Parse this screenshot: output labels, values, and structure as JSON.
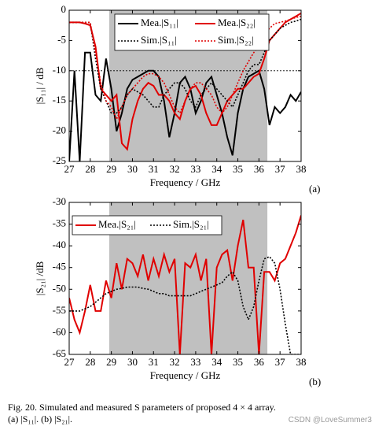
{
  "chart_data": [
    {
      "type": "line",
      "y_label": "|S₁₁| / dB",
      "x_label": "Frequency / GHz",
      "panel": "(a)",
      "xlim": [
        27,
        38
      ],
      "ylim": [
        -25,
        0
      ],
      "xticks": [
        27,
        28,
        29,
        30,
        31,
        32,
        33,
        34,
        35,
        36,
        37,
        38
      ],
      "yticks": [
        0,
        -5,
        -10,
        -15,
        -20,
        -25
      ],
      "shade": [
        28.9,
        36.4
      ],
      "reference_line": -10,
      "x": [
        27,
        27.25,
        27.5,
        27.75,
        28,
        28.25,
        28.5,
        28.75,
        29,
        29.25,
        29.5,
        29.75,
        30,
        30.25,
        30.5,
        30.75,
        31,
        31.25,
        31.5,
        31.75,
        32,
        32.25,
        32.5,
        32.75,
        33,
        33.25,
        33.5,
        33.75,
        34,
        34.25,
        34.5,
        34.75,
        35,
        35.25,
        35.5,
        35.75,
        36,
        36.25,
        36.5,
        36.75,
        37,
        37.25,
        37.5,
        37.75,
        38
      ],
      "series": [
        {
          "name": "Mea.|S₁₁|",
          "color": "#000000",
          "dash": "solid",
          "values": [
            -25,
            -10,
            -25,
            -7,
            -7,
            -14,
            -15,
            -8,
            -13,
            -20,
            -17,
            -13,
            -11.5,
            -11,
            -10.5,
            -10,
            -10,
            -11,
            -15,
            -21,
            -17,
            -12,
            -11,
            -13,
            -17,
            -15,
            -12,
            -11,
            -14,
            -17,
            -21,
            -24,
            -17,
            -13,
            -11,
            -10.5,
            -10,
            -13,
            -19,
            -16,
            -17,
            -16,
            -14,
            -15,
            -13.5
          ]
        },
        {
          "name": "Mea.|S₂₂|",
          "color": "#e00000",
          "dash": "solid",
          "values": [
            -2,
            -2,
            -2,
            -2.2,
            -2.5,
            -6,
            -13,
            -14,
            -15,
            -14,
            -22,
            -23,
            -18,
            -15,
            -13,
            -12,
            -12.5,
            -14,
            -14,
            -15,
            -17,
            -18,
            -15,
            -13,
            -12.5,
            -14,
            -17,
            -19,
            -19,
            -17,
            -15,
            -14,
            -13,
            -13,
            -12,
            -11,
            -10.5,
            -8,
            -5,
            -4,
            -3,
            -2,
            -1.5,
            -1,
            -0.5
          ]
        },
        {
          "name": "Sim.|S₁₁|",
          "color": "#000000",
          "dash": "dotted",
          "values": [
            -2,
            -2,
            -2,
            -2,
            -2,
            -8,
            -13,
            -15,
            -17,
            -17,
            -16,
            -14,
            -13,
            -13.5,
            -14,
            -15,
            -16,
            -16,
            -14,
            -13,
            -12,
            -12,
            -13,
            -15,
            -16,
            -14,
            -13,
            -12,
            -13,
            -14,
            -15,
            -16,
            -14,
            -12,
            -10,
            -9,
            -9,
            -7,
            -5,
            -4,
            -3,
            -2.5,
            -2,
            -1.8,
            -1.5
          ]
        },
        {
          "name": "Sim.|S₂₂|",
          "color": "#e00000",
          "dash": "dotted",
          "values": [
            -2,
            -2,
            -2,
            -2,
            -2,
            -7,
            -12,
            -15,
            -16,
            -18,
            -16,
            -14,
            -13,
            -12,
            -11,
            -10.5,
            -10.5,
            -11,
            -12,
            -14,
            -16,
            -17,
            -15,
            -13,
            -12,
            -12,
            -13,
            -14,
            -16,
            -17,
            -16,
            -14,
            -12,
            -10,
            -8.5,
            -7,
            -6,
            -4,
            -3,
            -2.2,
            -2,
            -1.8,
            -1.5,
            -1.2,
            -1
          ]
        }
      ]
    },
    {
      "type": "line",
      "y_label": "|S₂₁| /dB",
      "x_label": "Frequency / GHz",
      "panel": "(b)",
      "xlim": [
        27,
        38
      ],
      "ylim": [
        -65,
        -30
      ],
      "xticks": [
        27,
        28,
        29,
        30,
        31,
        32,
        33,
        34,
        35,
        36,
        37,
        38
      ],
      "yticks": [
        -30,
        -35,
        -40,
        -45,
        -50,
        -55,
        -60,
        -65
      ],
      "shade": [
        28.9,
        36.4
      ],
      "x": [
        27,
        27.25,
        27.5,
        27.75,
        28,
        28.25,
        28.5,
        28.75,
        29,
        29.25,
        29.5,
        29.75,
        30,
        30.25,
        30.5,
        30.75,
        31,
        31.25,
        31.5,
        31.75,
        32,
        32.25,
        32.5,
        32.75,
        33,
        33.25,
        33.5,
        33.75,
        34,
        34.25,
        34.5,
        34.75,
        35,
        35.25,
        35.5,
        35.75,
        36,
        36.25,
        36.5,
        36.75,
        37,
        37.25,
        37.5,
        37.75,
        38
      ],
      "series": [
        {
          "name": "Mea.|S₂₁|",
          "color": "#e00000",
          "dash": "solid",
          "values": [
            -52,
            -57,
            -60,
            -55,
            -49,
            -55,
            -55,
            -48,
            -52,
            -44,
            -50,
            -43,
            -44,
            -47,
            -42,
            -48,
            -43,
            -47,
            -42,
            -46,
            -43,
            -65,
            -44,
            -45,
            -42,
            -48,
            -43,
            -65,
            -45,
            -42,
            -41,
            -48,
            -40,
            -34,
            -45,
            -45,
            -65,
            -46,
            -46,
            -48,
            -44,
            -43,
            -40,
            -37,
            -33
          ]
        },
        {
          "name": "Sim.|S₂₁|",
          "color": "#000000",
          "dash": "dotted",
          "values": [
            -55,
            -55,
            -55,
            -54.5,
            -54,
            -53,
            -52,
            -51,
            -50.5,
            -50,
            -49.8,
            -49.5,
            -49.5,
            -49.5,
            -49.8,
            -50,
            -50.5,
            -51,
            -51,
            -51.5,
            -51.5,
            -51.5,
            -51.5,
            -51.5,
            -51,
            -50.5,
            -50,
            -49.5,
            -49,
            -48.5,
            -47,
            -46,
            -48,
            -54,
            -57,
            -54,
            -48,
            -43,
            -42.5,
            -44,
            -50,
            -58,
            -65,
            -65,
            -65
          ]
        }
      ]
    }
  ],
  "caption": {
    "line1": "Fig. 20.   Simulated and measured S parameters of proposed 4 × 4 array.",
    "line2": "(a) |S₁₁|. (b) |S₂₁|."
  },
  "watermark": "CSDN @LoveSummer3"
}
